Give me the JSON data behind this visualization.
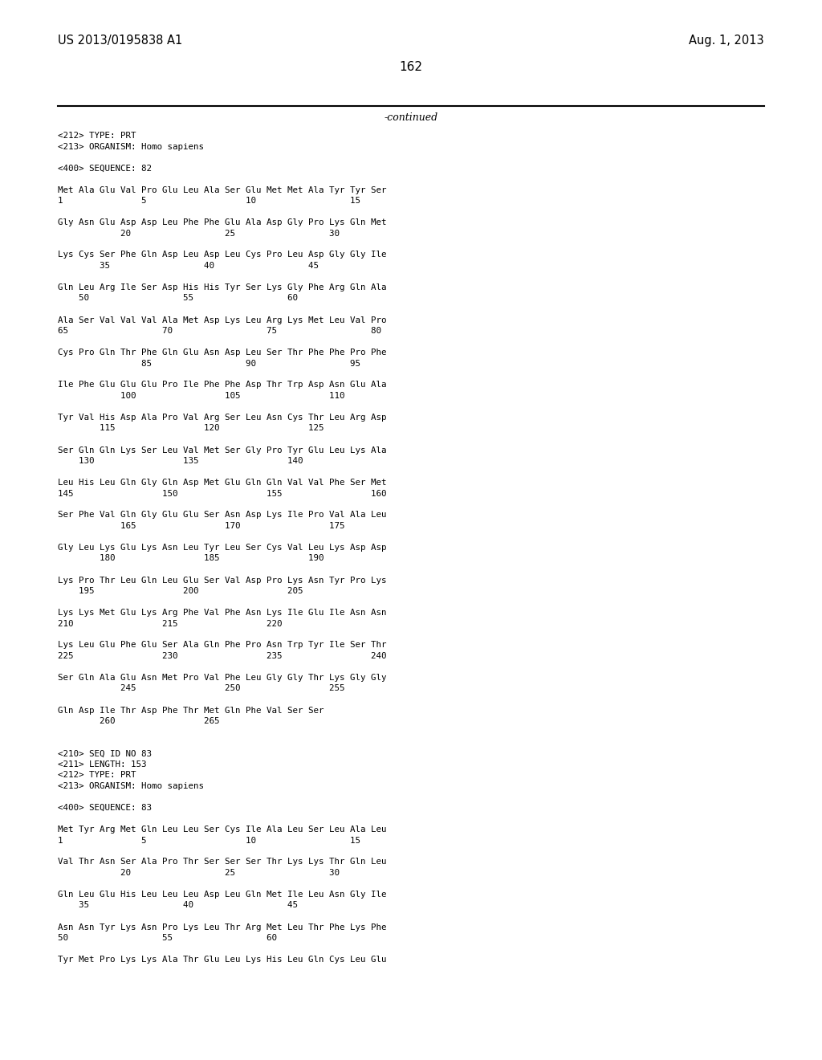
{
  "header_left": "US 2013/0195838 A1",
  "header_right": "Aug. 1, 2013",
  "page_number": "162",
  "continued_text": "-continued",
  "content_lines": [
    "<212> TYPE: PRT",
    "<213> ORGANISM: Homo sapiens",
    "",
    "<400> SEQUENCE: 82",
    "",
    "Met Ala Glu Val Pro Glu Leu Ala Ser Glu Met Met Ala Tyr Tyr Ser",
    "1               5                   10                  15",
    "",
    "Gly Asn Glu Asp Asp Leu Phe Phe Glu Ala Asp Gly Pro Lys Gln Met",
    "            20                  25                  30",
    "",
    "Lys Cys Ser Phe Gln Asp Leu Asp Leu Cys Pro Leu Asp Gly Gly Ile",
    "        35                  40                  45",
    "",
    "Gln Leu Arg Ile Ser Asp His His Tyr Ser Lys Gly Phe Arg Gln Ala",
    "    50                  55                  60",
    "",
    "Ala Ser Val Val Val Ala Met Asp Lys Leu Arg Lys Met Leu Val Pro",
    "65                  70                  75                  80",
    "",
    "Cys Pro Gln Thr Phe Gln Glu Asn Asp Leu Ser Thr Phe Phe Pro Phe",
    "                85                  90                  95",
    "",
    "Ile Phe Glu Glu Glu Pro Ile Phe Phe Asp Thr Trp Asp Asn Glu Ala",
    "            100                 105                 110",
    "",
    "Tyr Val His Asp Ala Pro Val Arg Ser Leu Asn Cys Thr Leu Arg Asp",
    "        115                 120                 125",
    "",
    "Ser Gln Gln Lys Ser Leu Val Met Ser Gly Pro Tyr Glu Leu Lys Ala",
    "    130                 135                 140",
    "",
    "Leu His Leu Gln Gly Gln Asp Met Glu Gln Gln Val Val Phe Ser Met",
    "145                 150                 155                 160",
    "",
    "Ser Phe Val Gln Gly Glu Glu Ser Asn Asp Lys Ile Pro Val Ala Leu",
    "            165                 170                 175",
    "",
    "Gly Leu Lys Glu Lys Asn Leu Tyr Leu Ser Cys Val Leu Lys Asp Asp",
    "        180                 185                 190",
    "",
    "Lys Pro Thr Leu Gln Leu Glu Ser Val Asp Pro Lys Asn Tyr Pro Lys",
    "    195                 200                 205",
    "",
    "Lys Lys Met Glu Lys Arg Phe Val Phe Asn Lys Ile Glu Ile Asn Asn",
    "210                 215                 220",
    "",
    "Lys Leu Glu Phe Glu Ser Ala Gln Phe Pro Asn Trp Tyr Ile Ser Thr",
    "225                 230                 235                 240",
    "",
    "Ser Gln Ala Glu Asn Met Pro Val Phe Leu Gly Gly Thr Lys Gly Gly",
    "            245                 250                 255",
    "",
    "Gln Asp Ile Thr Asp Phe Thr Met Gln Phe Val Ser Ser",
    "        260                 265",
    "",
    "",
    "<210> SEQ ID NO 83",
    "<211> LENGTH: 153",
    "<212> TYPE: PRT",
    "<213> ORGANISM: Homo sapiens",
    "",
    "<400> SEQUENCE: 83",
    "",
    "Met Tyr Arg Met Gln Leu Leu Ser Cys Ile Ala Leu Ser Leu Ala Leu",
    "1               5                   10                  15",
    "",
    "Val Thr Asn Ser Ala Pro Thr Ser Ser Ser Thr Lys Lys Thr Gln Leu",
    "            20                  25                  30",
    "",
    "Gln Leu Glu His Leu Leu Leu Asp Leu Gln Met Ile Leu Asn Gly Ile",
    "    35                  40                  45",
    "",
    "Asn Asn Tyr Lys Asn Pro Lys Leu Thr Arg Met Leu Thr Phe Lys Phe",
    "50                  55                  60",
    "",
    "Tyr Met Pro Lys Lys Ala Thr Glu Leu Lys His Leu Gln Cys Leu Glu"
  ]
}
